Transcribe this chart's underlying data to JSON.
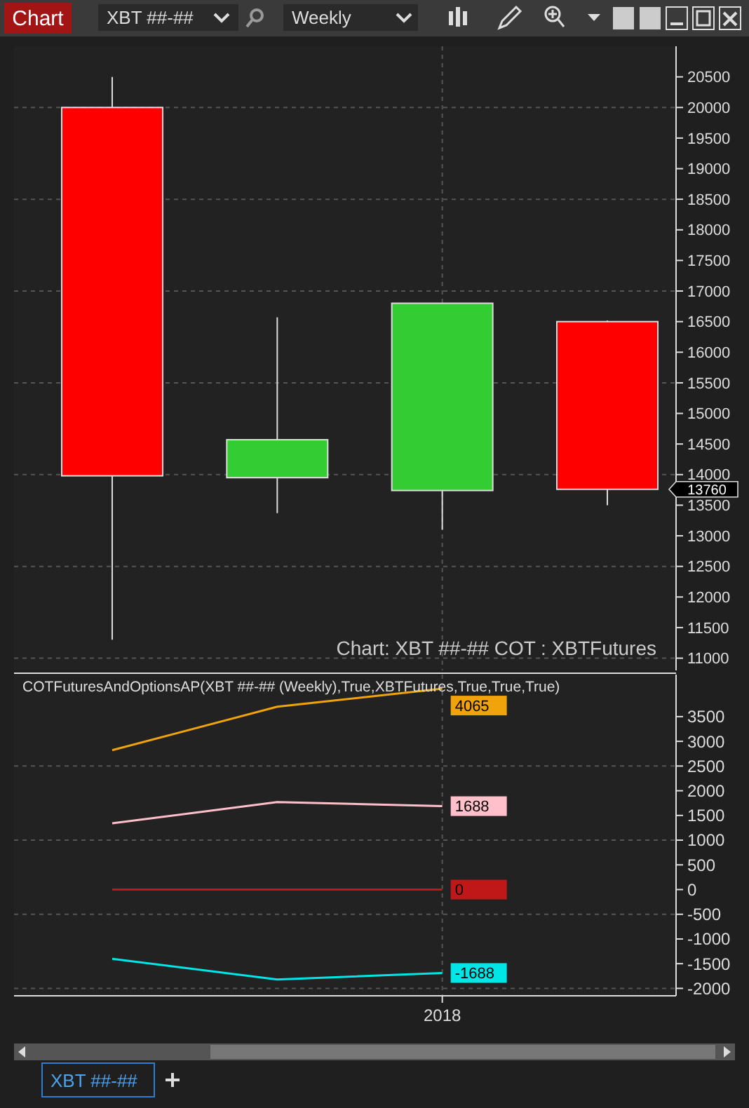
{
  "chart_data": [
    {
      "type": "candlestick",
      "title": "Chart",
      "categories": [
        null,
        null,
        null,
        null
      ],
      "ohlc": [
        [
          20000,
          20500,
          11300,
          13980
        ],
        [
          13950,
          16570,
          13370,
          14570
        ],
        [
          13740,
          16800,
          13100,
          16800
        ],
        [
          16500,
          16520,
          13500,
          13760
        ]
      ],
      "colors": [
        "#ff0000",
        "#33cc33",
        "#33cc33",
        "#ff0000"
      ],
      "ylim": [
        10800,
        21000
      ],
      "yticks": [
        11000,
        11500,
        12000,
        12500,
        13000,
        13500,
        14000,
        14500,
        15000,
        15500,
        16000,
        16500,
        17000,
        17500,
        18000,
        18500,
        19000,
        19500,
        20000,
        20500
      ],
      "grid": true,
      "tick_labels": "y",
      "value_labels": [
        null,
        null,
        null,
        "13760"
      ],
      "annotations": [
        "XBT ##-##",
        "Weekly",
        "Chart: XBT ##-##  COT : XBTFutures",
        "XBT ##-##"
      ]
    },
    {
      "type": "line",
      "title": "COTFuturesAndOptionsAP(XBT ##-## (Weekly),True,XBTFutures,True,True,True)",
      "categories": [
        null,
        null,
        "2018",
        null
      ],
      "series": [
        {
          "color": "#f0a30a",
          "values": [
            2820,
            3700,
            4065,
            null
          ],
          "value_labels": [
            null,
            null,
            "4065",
            null
          ]
        },
        {
          "color": "#ffc0cb",
          "values": [
            1340,
            1770,
            1688,
            null
          ],
          "value_labels": [
            null,
            null,
            "1688",
            null
          ]
        },
        {
          "color": "#c01818",
          "values": [
            0,
            0,
            0,
            null
          ],
          "value_labels": [
            null,
            null,
            "0",
            null
          ]
        },
        {
          "color": "#00e5e5",
          "values": [
            -1400,
            -1820,
            -1688,
            null
          ],
          "value_labels": [
            null,
            null,
            "-1688",
            null
          ]
        }
      ],
      "ylim": [
        -2150,
        4350
      ],
      "yticks": [
        -2000,
        -1500,
        -1000,
        -500,
        0,
        500,
        1000,
        1500,
        2000,
        2500,
        3000,
        3500
      ],
      "grid": true
    }
  ]
}
